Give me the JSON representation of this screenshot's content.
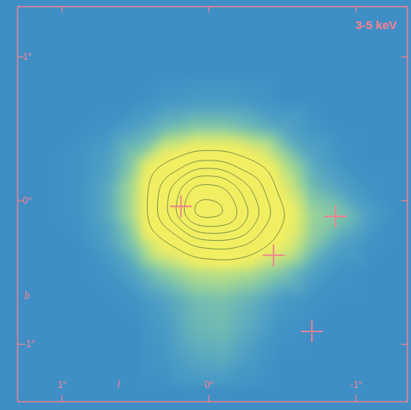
{
  "chart_data": {
    "type": "contour",
    "title": "3-5 keV",
    "x_label": "l",
    "y_label": "b",
    "xlim": [
      1.3,
      -1.35
    ],
    "ylim": [
      -1.4,
      1.35
    ],
    "xticks": [
      {
        "value": 1,
        "label": "1°"
      },
      {
        "value": 0,
        "label": "0°"
      },
      {
        "value": -1,
        "label": "-1°"
      }
    ],
    "yticks": [
      {
        "value": 1,
        "label": "1°"
      },
      {
        "value": 0,
        "label": "0°"
      },
      {
        "value": -1,
        "label": "-1°"
      }
    ],
    "cells": {
      "l": [
        1.3,
        1.1,
        0.9,
        0.7,
        0.5,
        0.3,
        0.1,
        -0.1,
        -0.3,
        -0.5,
        -0.7,
        -0.9,
        -1.1,
        -1.3
      ],
      "b": [
        1.3,
        1.1,
        0.9,
        0.7,
        0.5,
        0.3,
        0.1,
        -0.1,
        -0.3,
        -0.5,
        -0.7,
        -0.9,
        -1.1,
        -1.3
      ],
      "values": [
        [
          1,
          1,
          1,
          1,
          1,
          1,
          1,
          1,
          1,
          1,
          1,
          1,
          1,
          1
        ],
        [
          1,
          1,
          1,
          1,
          1,
          1,
          1,
          1,
          1,
          1,
          1,
          1,
          1,
          1
        ],
        [
          1,
          1,
          1,
          1,
          1,
          1,
          1,
          1,
          1,
          1,
          1,
          1,
          1,
          1
        ],
        [
          1,
          1,
          1,
          1,
          1,
          1.2,
          1.3,
          1.3,
          1.2,
          1,
          1,
          1,
          1,
          1
        ],
        [
          1,
          1,
          1,
          1.1,
          1.5,
          2,
          2.3,
          2.3,
          2,
          1.6,
          1.2,
          1,
          1,
          1
        ],
        [
          1,
          1,
          1.1,
          1.4,
          2.3,
          3.7,
          4.5,
          4.5,
          3.8,
          2.6,
          1.6,
          1.1,
          1,
          1
        ],
        [
          1,
          1,
          1.1,
          1.6,
          2.8,
          5.5,
          8.5,
          8.3,
          5.8,
          3.4,
          2,
          1.5,
          1.1,
          1
        ],
        [
          1,
          1,
          1.1,
          1.6,
          2.8,
          5.8,
          9.8,
          9.6,
          6.8,
          4.2,
          2.5,
          2.2,
          1.4,
          1
        ],
        [
          1,
          1,
          1,
          1.4,
          2.3,
          3.8,
          5.2,
          5.5,
          4.8,
          3.6,
          2.3,
          1.5,
          1.1,
          1
        ],
        [
          1,
          1,
          1,
          1.1,
          1.6,
          2.3,
          2.8,
          2.9,
          2.7,
          2.2,
          1.5,
          1.1,
          1,
          1
        ],
        [
          1,
          1,
          1,
          1,
          1.1,
          1.5,
          2,
          2.1,
          1.8,
          1.3,
          1.1,
          1,
          1,
          1
        ],
        [
          1,
          1,
          1,
          1,
          1,
          1.3,
          1.9,
          2,
          1.6,
          1.1,
          1,
          1,
          1,
          1
        ],
        [
          1,
          1,
          1,
          1,
          1,
          1.2,
          1.6,
          1.7,
          1.3,
          1,
          1,
          1,
          1,
          1
        ],
        [
          1,
          1,
          1,
          1,
          1,
          1,
          1.2,
          1.2,
          1.1,
          1,
          1,
          1,
          1,
          1
        ]
      ]
    },
    "contours": [
      4,
      5,
      6,
      7,
      8,
      9
    ],
    "sources": {
      "l": [
        0.19,
        -0.44,
        -0.86,
        -0.7
      ],
      "b": [
        -0.04,
        -0.38,
        -0.11,
        -0.91
      ]
    },
    "marker": "plus"
  }
}
